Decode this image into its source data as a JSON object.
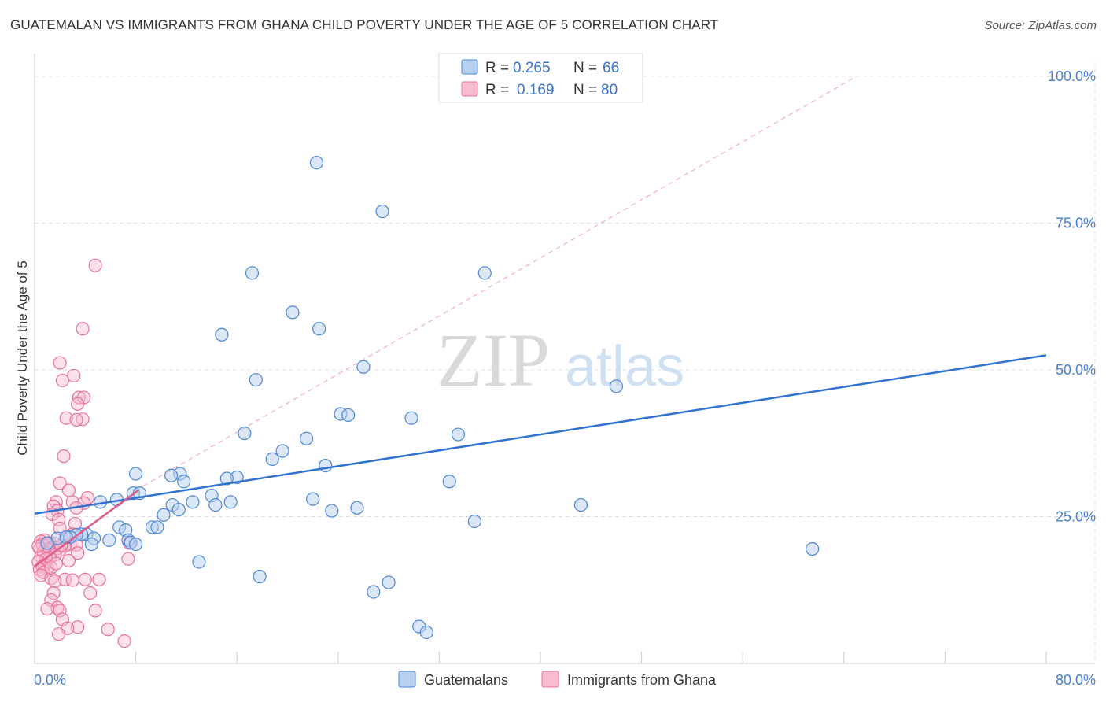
{
  "title": "GUATEMALAN VS IMMIGRANTS FROM GHANA CHILD POVERTY UNDER THE AGE OF 5 CORRELATION CHART",
  "source": "Source: ZipAtlas.com",
  "watermark": {
    "zip": "ZIP",
    "atlas": "atlas"
  },
  "colors": {
    "blue_fill": "#b8d0f0",
    "blue_stroke": "#4a86d8",
    "blue_line": "#2f72d0",
    "pink_fill": "#f8bdd0",
    "pink_stroke": "#e8709a",
    "pink_line": "#e05a8a",
    "axis_text": "#4a7fd0",
    "grid": "#e0e0e0"
  },
  "legend": {
    "r_label": "R =",
    "n_label": "N =",
    "items": [
      {
        "r": "0.265",
        "n": "66"
      },
      {
        "r": "0.169",
        "n": "80"
      }
    ]
  },
  "chart_data": {
    "type": "scatter",
    "title": "GUATEMALAN VS IMMIGRANTS FROM GHANA CHILD POVERTY UNDER THE AGE OF 5 CORRELATION CHART",
    "xlabel": "",
    "ylabel": "Child Poverty Under the Age of 5",
    "xlim": [
      0,
      80
    ],
    "ylim": [
      0,
      100
    ],
    "x_tick_labels": [
      "0.0%",
      "80.0%"
    ],
    "y_ticks": [
      25,
      50,
      75,
      100
    ],
    "y_tick_labels": [
      "25.0%",
      "50.0%",
      "75.0%",
      "100.0%"
    ],
    "grid": true,
    "legend_position": "top-center",
    "series": [
      {
        "name": "Guatemalans",
        "trend": {
          "x": [
            0,
            80
          ],
          "y": [
            25.5,
            52.5
          ]
        },
        "points": [
          [
            22.3,
            85.3
          ],
          [
            27.5,
            77.0
          ],
          [
            17.2,
            66.5
          ],
          [
            35.6,
            66.5
          ],
          [
            20.4,
            59.8
          ],
          [
            14.8,
            56.0
          ],
          [
            22.5,
            57.0
          ],
          [
            26.0,
            50.5
          ],
          [
            17.5,
            48.3
          ],
          [
            46.0,
            47.2
          ],
          [
            24.2,
            42.5
          ],
          [
            24.8,
            42.3
          ],
          [
            29.8,
            41.8
          ],
          [
            16.6,
            39.2
          ],
          [
            21.5,
            38.3
          ],
          [
            33.5,
            39.0
          ],
          [
            19.6,
            36.2
          ],
          [
            18.8,
            34.8
          ],
          [
            23.0,
            33.7
          ],
          [
            8.0,
            32.3
          ],
          [
            11.5,
            32.3
          ],
          [
            10.8,
            32.0
          ],
          [
            16.0,
            31.7
          ],
          [
            15.2,
            31.5
          ],
          [
            11.8,
            31.0
          ],
          [
            32.8,
            31.0
          ],
          [
            7.8,
            29.0
          ],
          [
            8.3,
            29.0
          ],
          [
            14.0,
            28.6
          ],
          [
            22.0,
            28.0
          ],
          [
            6.5,
            27.9
          ],
          [
            15.5,
            27.5
          ],
          [
            12.5,
            27.5
          ],
          [
            14.3,
            27.0
          ],
          [
            10.9,
            27.0
          ],
          [
            5.2,
            27.5
          ],
          [
            25.5,
            26.5
          ],
          [
            11.4,
            26.2
          ],
          [
            23.5,
            26.0
          ],
          [
            43.2,
            27.0
          ],
          [
            10.2,
            25.3
          ],
          [
            34.8,
            24.2
          ],
          [
            6.7,
            23.2
          ],
          [
            9.3,
            23.2
          ],
          [
            9.7,
            23.2
          ],
          [
            7.2,
            22.7
          ],
          [
            4.1,
            22.0
          ],
          [
            3.7,
            22.0
          ],
          [
            3.3,
            21.9
          ],
          [
            2.8,
            21.5
          ],
          [
            4.7,
            21.3
          ],
          [
            7.4,
            21.0
          ],
          [
            5.9,
            21.0
          ],
          [
            7.6,
            20.6
          ],
          [
            4.5,
            20.3
          ],
          [
            8.0,
            20.3
          ],
          [
            1.8,
            21.3
          ],
          [
            2.5,
            21.5
          ],
          [
            1.0,
            20.5
          ],
          [
            61.5,
            19.5
          ],
          [
            13.0,
            17.3
          ],
          [
            17.8,
            14.8
          ],
          [
            26.8,
            12.2
          ],
          [
            28.0,
            13.8
          ],
          [
            30.4,
            6.3
          ],
          [
            31.0,
            5.3
          ]
        ]
      },
      {
        "name": "Immigrants from Ghana",
        "trend": {
          "x": [
            0,
            8.2
          ],
          "y": [
            16.5,
            29.5
          ]
        },
        "points": [
          [
            4.8,
            67.8
          ],
          [
            3.8,
            57.0
          ],
          [
            2.0,
            51.2
          ],
          [
            3.1,
            49.0
          ],
          [
            2.2,
            48.2
          ],
          [
            3.5,
            45.3
          ],
          [
            3.9,
            45.3
          ],
          [
            3.4,
            44.2
          ],
          [
            2.5,
            41.8
          ],
          [
            3.8,
            41.6
          ],
          [
            3.3,
            41.5
          ],
          [
            2.3,
            35.3
          ],
          [
            2.0,
            30.7
          ],
          [
            2.7,
            29.5
          ],
          [
            4.2,
            28.2
          ],
          [
            3.0,
            27.5
          ],
          [
            1.7,
            27.5
          ],
          [
            3.9,
            27.3
          ],
          [
            1.5,
            26.8
          ],
          [
            3.3,
            26.5
          ],
          [
            1.8,
            26.0
          ],
          [
            1.4,
            25.4
          ],
          [
            1.9,
            24.5
          ],
          [
            3.2,
            23.8
          ],
          [
            2.0,
            23.0
          ],
          [
            3.0,
            22.0
          ],
          [
            0.8,
            21.0
          ],
          [
            0.5,
            20.8
          ],
          [
            1.2,
            20.5
          ],
          [
            1.6,
            20.4
          ],
          [
            0.6,
            20.3
          ],
          [
            1.0,
            20.3
          ],
          [
            2.8,
            20.3
          ],
          [
            3.3,
            20.2
          ],
          [
            2.4,
            20.0
          ],
          [
            0.9,
            19.8
          ],
          [
            1.4,
            19.7
          ],
          [
            1.8,
            19.6
          ],
          [
            0.4,
            19.5
          ],
          [
            1.1,
            19.4
          ],
          [
            2.0,
            19.3
          ],
          [
            0.7,
            19.0
          ],
          [
            3.4,
            18.8
          ],
          [
            1.6,
            18.5
          ],
          [
            0.5,
            18.2
          ],
          [
            1.2,
            18.0
          ],
          [
            0.9,
            17.8
          ],
          [
            2.7,
            17.5
          ],
          [
            7.5,
            20.5
          ],
          [
            7.4,
            17.8
          ],
          [
            0.3,
            17.3
          ],
          [
            0.8,
            16.8
          ],
          [
            0.6,
            16.5
          ],
          [
            1.0,
            16.2
          ],
          [
            0.4,
            16.0
          ],
          [
            0.7,
            15.5
          ],
          [
            0.5,
            15.0
          ],
          [
            1.3,
            14.5
          ],
          [
            2.4,
            14.3
          ],
          [
            3.0,
            14.2
          ],
          [
            4.0,
            14.3
          ],
          [
            5.1,
            14.3
          ],
          [
            1.6,
            14.0
          ],
          [
            1.5,
            12.0
          ],
          [
            4.4,
            12.0
          ],
          [
            1.3,
            10.8
          ],
          [
            1.8,
            9.5
          ],
          [
            2.0,
            9.0
          ],
          [
            4.8,
            9.0
          ],
          [
            1.0,
            9.3
          ],
          [
            2.2,
            7.5
          ],
          [
            3.4,
            6.2
          ],
          [
            2.6,
            6.0
          ],
          [
            5.8,
            5.8
          ],
          [
            1.9,
            5.0
          ],
          [
            7.1,
            3.8
          ],
          [
            1.3,
            16.3
          ],
          [
            2.1,
            20.1
          ],
          [
            0.3,
            20.0
          ],
          [
            1.7,
            17.0
          ]
        ]
      }
    ]
  },
  "bottom_legend": [
    "Guatemalans",
    "Immigrants from Ghana"
  ]
}
